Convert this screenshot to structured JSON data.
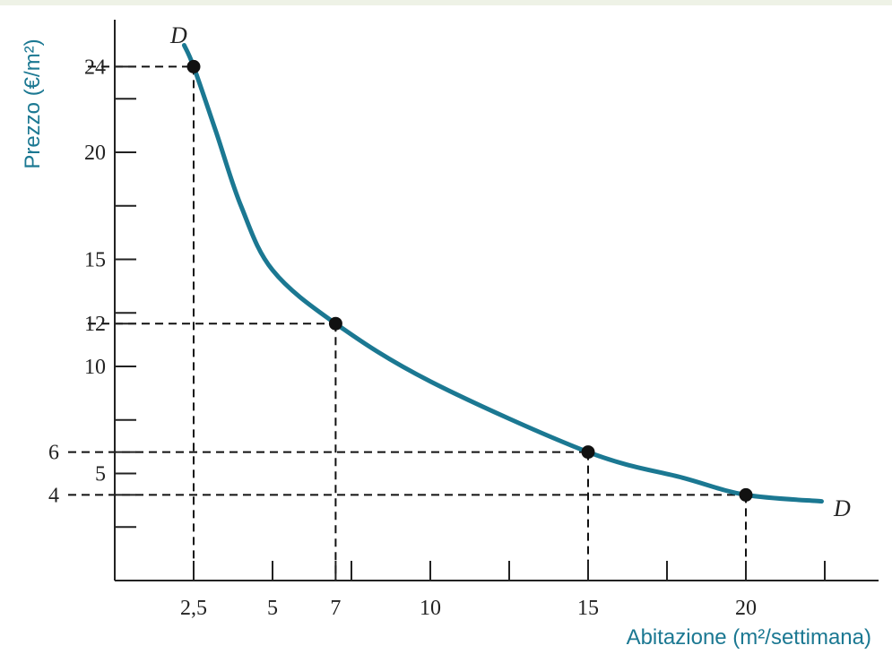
{
  "colors": {
    "curve": "#1b7892",
    "axis_title": "#1b7892",
    "axis": "#222222",
    "point": "#111111",
    "guide": "#111111"
  },
  "chart_data": {
    "type": "line",
    "xlabel": "Abitazione (m²/settimana)",
    "ylabel": "Prezzo (€/m²)",
    "xlim": [
      0,
      23
    ],
    "ylim": [
      0,
      25
    ],
    "grid": false,
    "legend": "none",
    "curve_label": "D",
    "x_ticks": [
      2.5,
      5,
      7,
      10,
      15,
      20
    ],
    "x_tick_labels": [
      "2,5",
      "5",
      "7",
      "10",
      "15",
      "20"
    ],
    "x_minor_ticks": [
      7.5,
      12.5,
      17.5,
      22.5
    ],
    "y_ticks": [
      4,
      5,
      6,
      10,
      12,
      15,
      20,
      24
    ],
    "y_tick_labels": [
      "4",
      "5",
      "6",
      "10",
      "12",
      "15",
      "20",
      "24"
    ],
    "y_minor_ticks": [
      2.5,
      7.5,
      12.5,
      17.5,
      22.5
    ],
    "series": [
      {
        "curve": [
          {
            "x": 2.2,
            "y": 25
          },
          {
            "x": 2.5,
            "y": 24
          },
          {
            "x": 3.2,
            "y": 21
          },
          {
            "x": 4.0,
            "y": 17.5
          },
          {
            "x": 5.0,
            "y": 14.5
          },
          {
            "x": 7.0,
            "y": 12
          },
          {
            "x": 10.0,
            "y": 9.3
          },
          {
            "x": 15.0,
            "y": 6
          },
          {
            "x": 18.0,
            "y": 4.8
          },
          {
            "x": 20.0,
            "y": 4
          },
          {
            "x": 22.4,
            "y": 3.7
          }
        ],
        "points": [
          {
            "x": 2.5,
            "y": 24
          },
          {
            "x": 7,
            "y": 12
          },
          {
            "x": 15,
            "y": 6
          },
          {
            "x": 20,
            "y": 4
          }
        ]
      }
    ]
  }
}
